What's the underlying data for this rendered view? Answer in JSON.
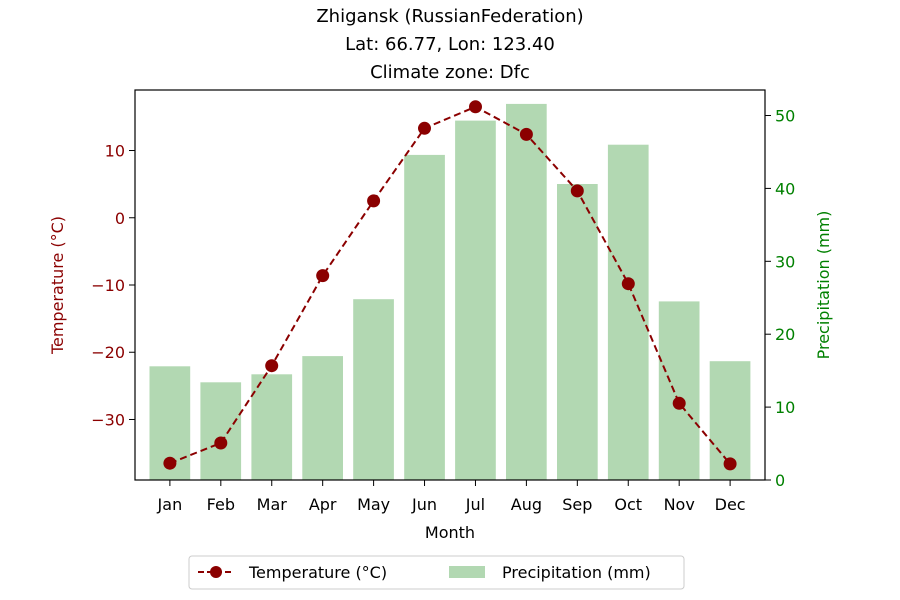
{
  "chart_data": {
    "type": "bar+line",
    "title_lines": [
      "Zhigansk (RussianFederation)",
      "Lat: 66.77, Lon: 123.40",
      "Climate zone: Dfc"
    ],
    "xlabel": "Month",
    "ylabel_left": "Temperature (°C)",
    "ylabel_right": "Precipitation (mm)",
    "categories": [
      "Jan",
      "Feb",
      "Mar",
      "Apr",
      "May",
      "Jun",
      "Jul",
      "Aug",
      "Sep",
      "Oct",
      "Nov",
      "Dec"
    ],
    "left_ticks": [
      10,
      0,
      -10,
      -20,
      -30
    ],
    "left_tick_labels": [
      "10",
      "0",
      "−10",
      "−20",
      "−30"
    ],
    "right_ticks": [
      0,
      10,
      20,
      30,
      40,
      50
    ],
    "ylim_left": [
      -39.0,
      19.0
    ],
    "ylim_right": [
      0,
      53.5
    ],
    "grid": false,
    "legend_placement": "bottom-center",
    "series": [
      {
        "name": "Temperature (°C)",
        "kind": "line",
        "axis": "left",
        "color": "#8b0000",
        "values": [
          -36.5,
          -33.5,
          -22.0,
          -8.6,
          2.5,
          13.3,
          16.5,
          12.4,
          4.0,
          -9.8,
          -27.6,
          -36.6
        ]
      },
      {
        "name": "Precipitation (mm)",
        "kind": "bar",
        "axis": "right",
        "color": "#b2d8b2",
        "values": [
          15.6,
          13.4,
          14.5,
          17.0,
          24.8,
          44.6,
          49.3,
          51.6,
          40.6,
          46.0,
          24.5,
          16.3
        ]
      }
    ],
    "axis_colors": {
      "left": "#8b0000",
      "right": "#008000"
    }
  }
}
